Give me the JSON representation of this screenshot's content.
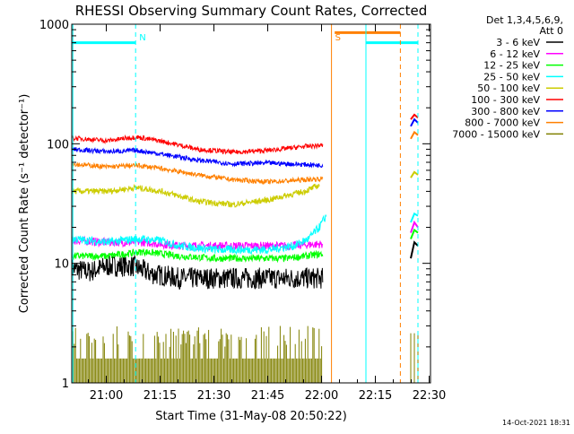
{
  "chart_data": {
    "type": "line",
    "title": "RHESSI Observing Summary Count Rates, Corrected",
    "xlabel": "Start Time (31-May-08 20:50:22)",
    "ylabel": "Corrected Count Rate (s⁻¹ detector⁻¹)",
    "y_scale": "log",
    "ylim": [
      1,
      1000
    ],
    "x_unit": "minutes since 20:50:22",
    "xlim": [
      0,
      100
    ],
    "x_ticks": [
      {
        "t": 9.63,
        "label": "21:00"
      },
      {
        "t": 24.63,
        "label": "21:15"
      },
      {
        "t": 39.63,
        "label": "21:30"
      },
      {
        "t": 54.63,
        "label": "21:45"
      },
      {
        "t": 69.63,
        "label": "22:00"
      },
      {
        "t": 84.63,
        "label": "22:15"
      },
      {
        "t": 99.63,
        "label": "22:30"
      }
    ],
    "y_ticks": [
      {
        "v": 1,
        "label": "1"
      },
      {
        "v": 10,
        "label": "10"
      },
      {
        "v": 100,
        "label": "100"
      },
      {
        "v": 1000,
        "label": "1000"
      }
    ],
    "legend_title": "Det 1,3,4,5,6,9,",
    "legend_subtitle": "Att 0",
    "legend_position": "right",
    "grid": false,
    "annotations": [
      {
        "text": "N",
        "t": 17.8,
        "color": "#00ffff"
      },
      {
        "text": "S",
        "t": 72.4,
        "color": "#ff8000"
      }
    ],
    "markers": [
      {
        "kind": "night",
        "color": "#00ffff",
        "style": "solid",
        "from": 0,
        "to": 17.8,
        "level": 700
      },
      {
        "kind": "night",
        "color": "#00ffff",
        "style": "solid",
        "from": 82.0,
        "to": 96.5,
        "level": 700
      },
      {
        "kind": "saa",
        "color": "#ff8000",
        "style": "solid",
        "from": 73.3,
        "to": 91.6,
        "level": 850
      }
    ],
    "vlines": [
      {
        "t": 0.3,
        "color": "#00ffff",
        "style": "solid"
      },
      {
        "t": 17.8,
        "color": "#00ffff",
        "style": "dashed"
      },
      {
        "t": 72.4,
        "color": "#ff8000",
        "style": "solid"
      },
      {
        "t": 82.0,
        "color": "#00ffff",
        "style": "solid"
      },
      {
        "t": 91.6,
        "color": "#ff8000",
        "style": "dashed"
      },
      {
        "t": 96.5,
        "color": "#00ffff",
        "style": "dashed"
      }
    ],
    "series": [
      {
        "name": "3 - 6 keV",
        "color": "#000000",
        "noise": 0.18,
        "points": [
          [
            0,
            9
          ],
          [
            5,
            8.5
          ],
          [
            10,
            9.5
          ],
          [
            17,
            9.5
          ],
          [
            22,
            8.2
          ],
          [
            30,
            7.5
          ],
          [
            40,
            7.5
          ],
          [
            50,
            7.5
          ],
          [
            60,
            7.5
          ],
          [
            70,
            7.5
          ]
        ],
        "points2": [
          [
            94.5,
            11
          ],
          [
            95.5,
            15
          ],
          [
            96.5,
            14
          ]
        ]
      },
      {
        "name": "6 - 12 keV",
        "color": "#ff00ff",
        "noise": 0.07,
        "points": [
          [
            0,
            15.5
          ],
          [
            10,
            15
          ],
          [
            20,
            15
          ],
          [
            30,
            14
          ],
          [
            40,
            14
          ],
          [
            50,
            14
          ],
          [
            60,
            14
          ],
          [
            70,
            14.5
          ]
        ],
        "points2": [
          [
            94.5,
            18
          ],
          [
            95.5,
            22
          ],
          [
            96.5,
            20
          ]
        ]
      },
      {
        "name": "12 - 25 keV",
        "color": "#00ff00",
        "noise": 0.06,
        "points": [
          [
            0,
            11.5
          ],
          [
            10,
            11.5
          ],
          [
            20,
            12.5
          ],
          [
            30,
            11.5
          ],
          [
            40,
            11
          ],
          [
            50,
            11
          ],
          [
            60,
            11
          ],
          [
            70,
            12
          ]
        ],
        "points2": [
          [
            94.5,
            16
          ],
          [
            95.5,
            19
          ],
          [
            96.5,
            18
          ]
        ]
      },
      {
        "name": "25 - 50 keV",
        "color": "#00ffff",
        "noise": 0.07,
        "points": [
          [
            0,
            16
          ],
          [
            10,
            15
          ],
          [
            18,
            16
          ],
          [
            25,
            15.5
          ],
          [
            30,
            14
          ],
          [
            40,
            13
          ],
          [
            55,
            13
          ],
          [
            62,
            14
          ],
          [
            66,
            16
          ],
          [
            69,
            20
          ],
          [
            71,
            25
          ]
        ],
        "points2": [
          [
            94.5,
            22
          ],
          [
            95.5,
            26
          ],
          [
            96.5,
            25
          ]
        ]
      },
      {
        "name": "50 - 100 keV",
        "color": "#cccc00",
        "noise": 0.05,
        "points": [
          [
            0,
            40
          ],
          [
            10,
            40
          ],
          [
            18,
            43
          ],
          [
            25,
            40
          ],
          [
            35,
            33
          ],
          [
            45,
            31
          ],
          [
            55,
            34
          ],
          [
            65,
            40
          ],
          [
            69,
            45
          ]
        ],
        "points2": [
          [
            94.5,
            52
          ],
          [
            95.5,
            58
          ],
          [
            96.5,
            55
          ]
        ]
      },
      {
        "name": "100 - 300 keV",
        "color": "#ff0000",
        "noise": 0.04,
        "points": [
          [
            0,
            112
          ],
          [
            10,
            106
          ],
          [
            18,
            114
          ],
          [
            25,
            105
          ],
          [
            35,
            90
          ],
          [
            45,
            85
          ],
          [
            55,
            88
          ],
          [
            65,
            95
          ],
          [
            70,
            97
          ]
        ],
        "points2": [
          [
            94.5,
            160
          ],
          [
            95.5,
            175
          ],
          [
            96.5,
            165
          ]
        ]
      },
      {
        "name": "300 - 800 keV",
        "color": "#0000ff",
        "noise": 0.04,
        "points": [
          [
            0,
            90
          ],
          [
            10,
            86
          ],
          [
            18,
            88
          ],
          [
            25,
            82
          ],
          [
            35,
            73
          ],
          [
            45,
            68
          ],
          [
            55,
            69
          ],
          [
            65,
            67
          ],
          [
            70,
            66
          ]
        ],
        "points2": [
          [
            94.5,
            140
          ],
          [
            95.5,
            160
          ],
          [
            96.5,
            150
          ]
        ]
      },
      {
        "name": "800 - 7000 keV",
        "color": "#ff8000",
        "noise": 0.04,
        "points": [
          [
            0,
            68
          ],
          [
            10,
            64
          ],
          [
            18,
            66
          ],
          [
            25,
            62
          ],
          [
            35,
            55
          ],
          [
            45,
            50
          ],
          [
            55,
            48
          ],
          [
            65,
            50
          ],
          [
            70,
            51
          ]
        ],
        "points2": [
          [
            94.5,
            110
          ],
          [
            95.5,
            125
          ],
          [
            96.5,
            118
          ]
        ]
      },
      {
        "name": "7000 - 15000 keV",
        "color": "#808000",
        "noise": 0,
        "points": [
          [
            0,
            1.2
          ],
          [
            70,
            1.2
          ]
        ]
      }
    ]
  },
  "footer": {
    "date": "14-Oct-2021 18:31"
  }
}
